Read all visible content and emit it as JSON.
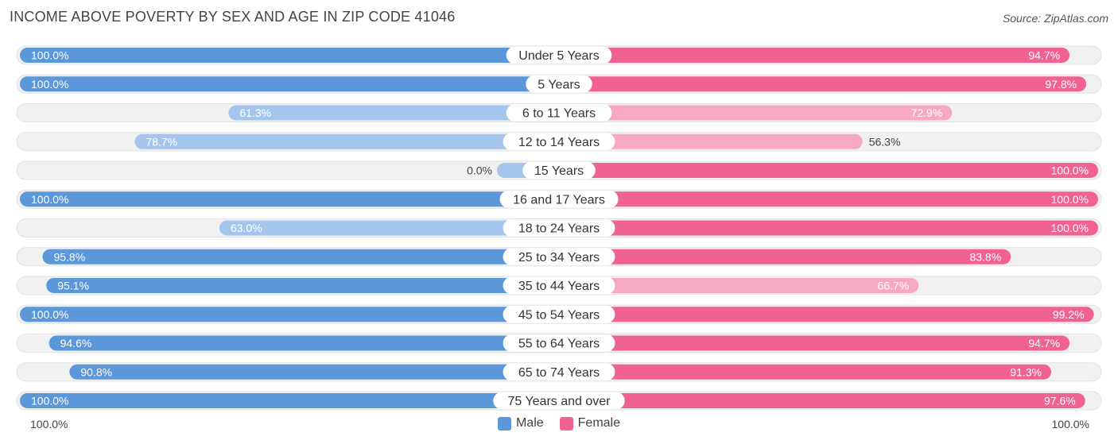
{
  "title": "INCOME ABOVE POVERTY BY SEX AND AGE IN ZIP CODE 41046",
  "source": "Source: ZipAtlas.com",
  "colors": {
    "male": "#5b97d9",
    "male_light": "#a5c6ec",
    "female": "#f06292",
    "female_light": "#f7a8c2",
    "track": "#eeeeee"
  },
  "axis": {
    "left_label": "100.0%",
    "right_label": "100.0%"
  },
  "legend": {
    "male": "Male",
    "female": "Female"
  },
  "chart_data": {
    "type": "bar",
    "orientation": "horizontal-diverging",
    "categories": [
      "Under 5 Years",
      "5 Years",
      "6 to 11 Years",
      "12 to 14 Years",
      "15 Years",
      "16 and 17 Years",
      "18 to 24 Years",
      "25 to 34 Years",
      "35 to 44 Years",
      "45 to 54 Years",
      "55 to 64 Years",
      "65 to 74 Years",
      "75 Years and over"
    ],
    "series": [
      {
        "name": "Male",
        "values": [
          100.0,
          100.0,
          61.3,
          78.7,
          0.0,
          100.0,
          63.0,
          95.8,
          95.1,
          100.0,
          94.6,
          90.8,
          100.0
        ],
        "labels": [
          "100.0%",
          "100.0%",
          "61.3%",
          "78.7%",
          "0.0%",
          "100.0%",
          "63.0%",
          "95.8%",
          "95.1%",
          "100.0%",
          "94.6%",
          "90.8%",
          "100.0%"
        ]
      },
      {
        "name": "Female",
        "values": [
          94.7,
          97.8,
          72.9,
          56.3,
          100.0,
          100.0,
          100.0,
          83.8,
          66.7,
          99.2,
          94.7,
          91.3,
          97.6
        ],
        "labels": [
          "94.7%",
          "97.8%",
          "72.9%",
          "56.3%",
          "100.0%",
          "100.0%",
          "100.0%",
          "83.8%",
          "66.7%",
          "99.2%",
          "94.7%",
          "91.3%",
          "97.6%"
        ]
      }
    ],
    "xlim": [
      0,
      100
    ],
    "legend_position": "bottom-center"
  }
}
